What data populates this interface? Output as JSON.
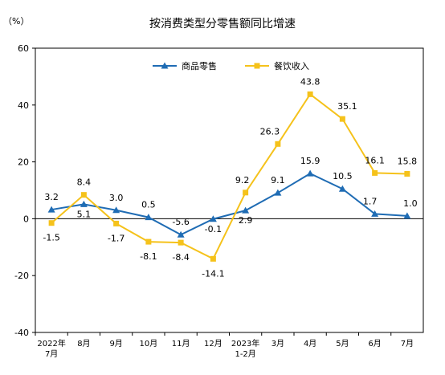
{
  "chart_data": {
    "type": "line",
    "title": "按消费类型分零售额同比增速",
    "unit_label": "（%）",
    "ylim": [
      -40,
      60
    ],
    "yticks": [
      "60",
      "40",
      "20",
      "0",
      "-20",
      "-40"
    ],
    "categories": [
      [
        "2022年",
        "7月"
      ],
      [
        "8月"
      ],
      [
        "9月"
      ],
      [
        "10月"
      ],
      [
        "11月"
      ],
      [
        "12月"
      ],
      [
        "2023年",
        "1-2月"
      ],
      [
        "3月"
      ],
      [
        "4月"
      ],
      [
        "5月"
      ],
      [
        "6月"
      ],
      [
        "7月"
      ]
    ],
    "legend_position": "top",
    "grid": false,
    "series": [
      {
        "name": "商品零售",
        "color": "#1f6cb4",
        "marker": "triangle",
        "values": [
          3.2,
          5.1,
          3.0,
          0.5,
          -5.6,
          -0.1,
          2.9,
          9.1,
          15.9,
          10.5,
          1.7,
          1.0
        ],
        "labels": [
          "3.2",
          "5.1",
          "3.0",
          "0.5",
          "-5.6",
          "-0.1",
          "2.9",
          "9.1",
          "15.9",
          "10.5",
          "1.7",
          "1.0"
        ]
      },
      {
        "name": "餐饮收入",
        "color": "#f5c21b",
        "marker": "square",
        "values": [
          -1.5,
          8.4,
          -1.7,
          -8.1,
          -8.4,
          -14.1,
          9.2,
          26.3,
          43.8,
          35.1,
          16.1,
          15.8
        ],
        "labels": [
          "-1.5",
          "8.4",
          "-1.7",
          "-8.1",
          "-8.4",
          "-14.1",
          "9.2",
          "26.3",
          "43.8",
          "35.1",
          "16.1",
          "15.8"
        ]
      }
    ]
  }
}
